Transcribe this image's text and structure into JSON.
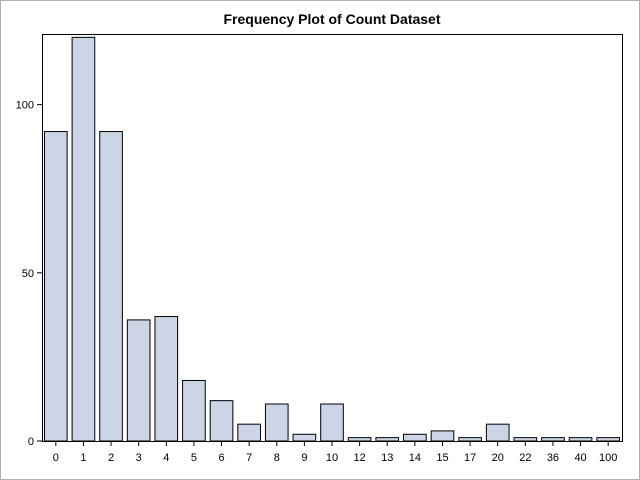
{
  "chart_data": {
    "type": "bar",
    "title": "Frequency Plot of Count Dataset",
    "xlabel": "",
    "ylabel": "",
    "categories": [
      "0",
      "1",
      "2",
      "3",
      "4",
      "5",
      "6",
      "7",
      "8",
      "9",
      "10",
      "12",
      "13",
      "14",
      "15",
      "17",
      "20",
      "22",
      "36",
      "40",
      "100"
    ],
    "values": [
      92,
      120,
      92,
      36,
      37,
      18,
      12,
      5,
      11,
      2,
      11,
      1,
      1,
      2,
      3,
      1,
      5,
      1,
      1,
      1,
      1
    ],
    "ylim": [
      0,
      121
    ],
    "yticks": [
      0,
      50,
      100
    ],
    "grid": false,
    "legend": "none",
    "colors": {
      "bar_fill": "#cbd5e6",
      "bar_stroke": "#000000",
      "axis": "#000000"
    }
  }
}
